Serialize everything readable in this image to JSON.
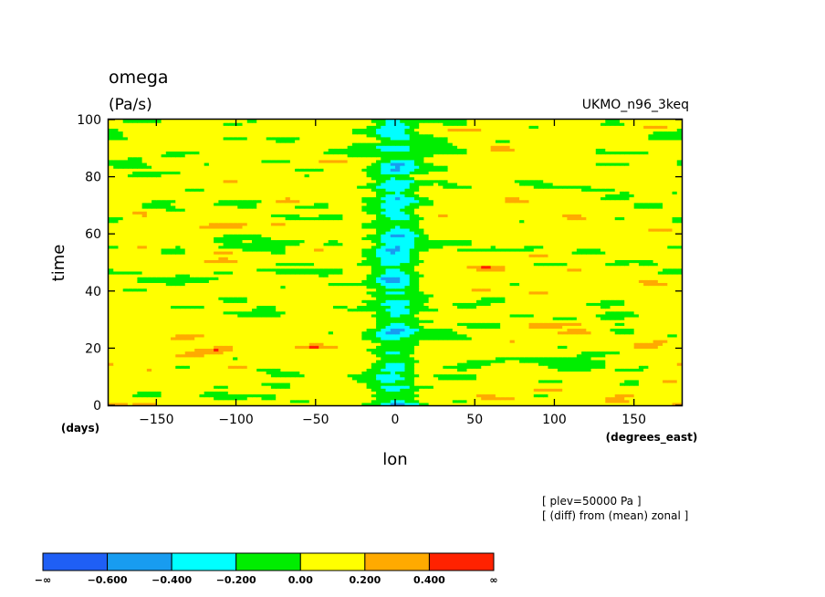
{
  "chart_data": {
    "type": "heatmap",
    "title": "omega",
    "units": "(Pa/s)",
    "dataset": "UKMO_n96_3keq",
    "xlabel": "lon",
    "ylabel": "time",
    "x_units": "(degrees_east)",
    "y_units": "(days)",
    "xlim": [
      -180,
      180
    ],
    "ylim": [
      0,
      100
    ],
    "x_ticks": [
      -150,
      -100,
      -50,
      0,
      50,
      100,
      150
    ],
    "y_ticks": [
      0,
      20,
      40,
      60,
      80,
      100
    ],
    "x_tick_labels": [
      "−150",
      "−100",
      "−50",
      "0",
      "50",
      "100",
      "150"
    ],
    "y_tick_labels": [
      "0",
      "20",
      "40",
      "60",
      "80",
      "100"
    ],
    "annotations": [
      "[ plev=50000 Pa ]",
      "[ (diff) from (mean) zonal ]"
    ],
    "colorbar": {
      "boundaries": [
        "−∞",
        "−0.600",
        "−0.400",
        "−0.200",
        "0.00",
        "0.200",
        "0.400",
        "∞"
      ],
      "colors": [
        "#1f5ff5",
        "#189cf0",
        "#00ffff",
        "#00ee00",
        "#ffff00",
        "#ffaa00",
        "#ff2200"
      ]
    },
    "field_description_values": {
      "lon_band_center": 0,
      "lon_band_width": 15,
      "dominant_range": [
        -0.2,
        0.2
      ]
    }
  }
}
